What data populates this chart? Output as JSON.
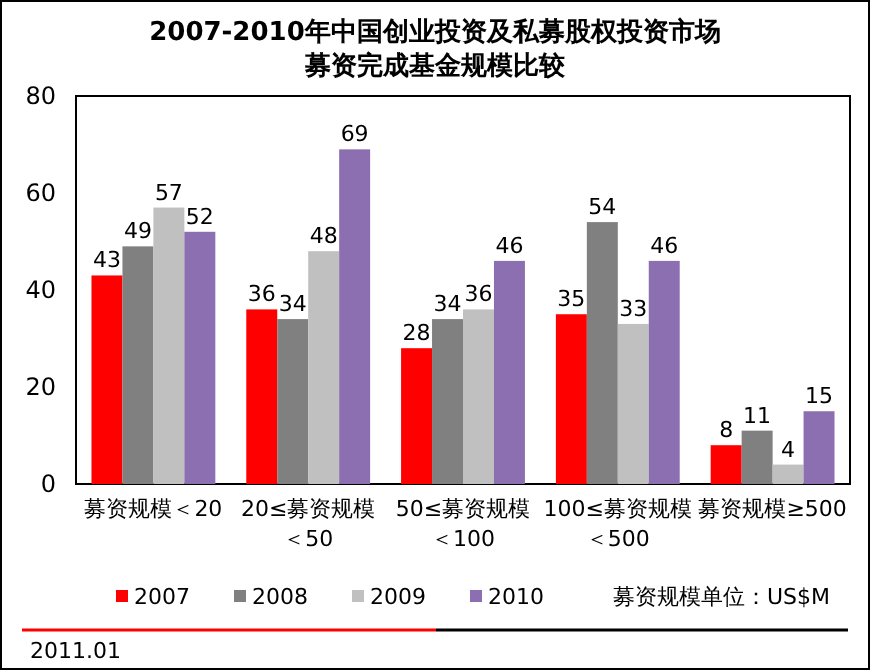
{
  "chart_data": {
    "type": "bar",
    "title": "2007-2010年中国创业投资及私募股权投资市场募资完成基金规模比较",
    "categories": [
      "募资规模＜20",
      "20≤募资规模＜50",
      "50≤募资规模＜100",
      "100≤募资规模＜500",
      "募资规模≥500"
    ],
    "series": [
      {
        "name": "2007",
        "color": "#ff0000",
        "values": [
          43,
          36,
          28,
          35,
          8
        ]
      },
      {
        "name": "2008",
        "color": "#808080",
        "values": [
          49,
          34,
          34,
          54,
          11
        ]
      },
      {
        "name": "2009",
        "color": "#c0c0c0",
        "values": [
          57,
          48,
          36,
          33,
          4
        ]
      },
      {
        "name": "2010",
        "color": "#8c6fb0",
        "values": [
          52,
          69,
          46,
          46,
          15
        ]
      }
    ],
    "ylim": [
      0,
      80
    ],
    "yticks": [
      0,
      20,
      40,
      60,
      80
    ],
    "data_labels": true,
    "legend": "bottom",
    "grid": false,
    "annotations": [
      "募资规模单位：US$M",
      "2011.01"
    ]
  }
}
